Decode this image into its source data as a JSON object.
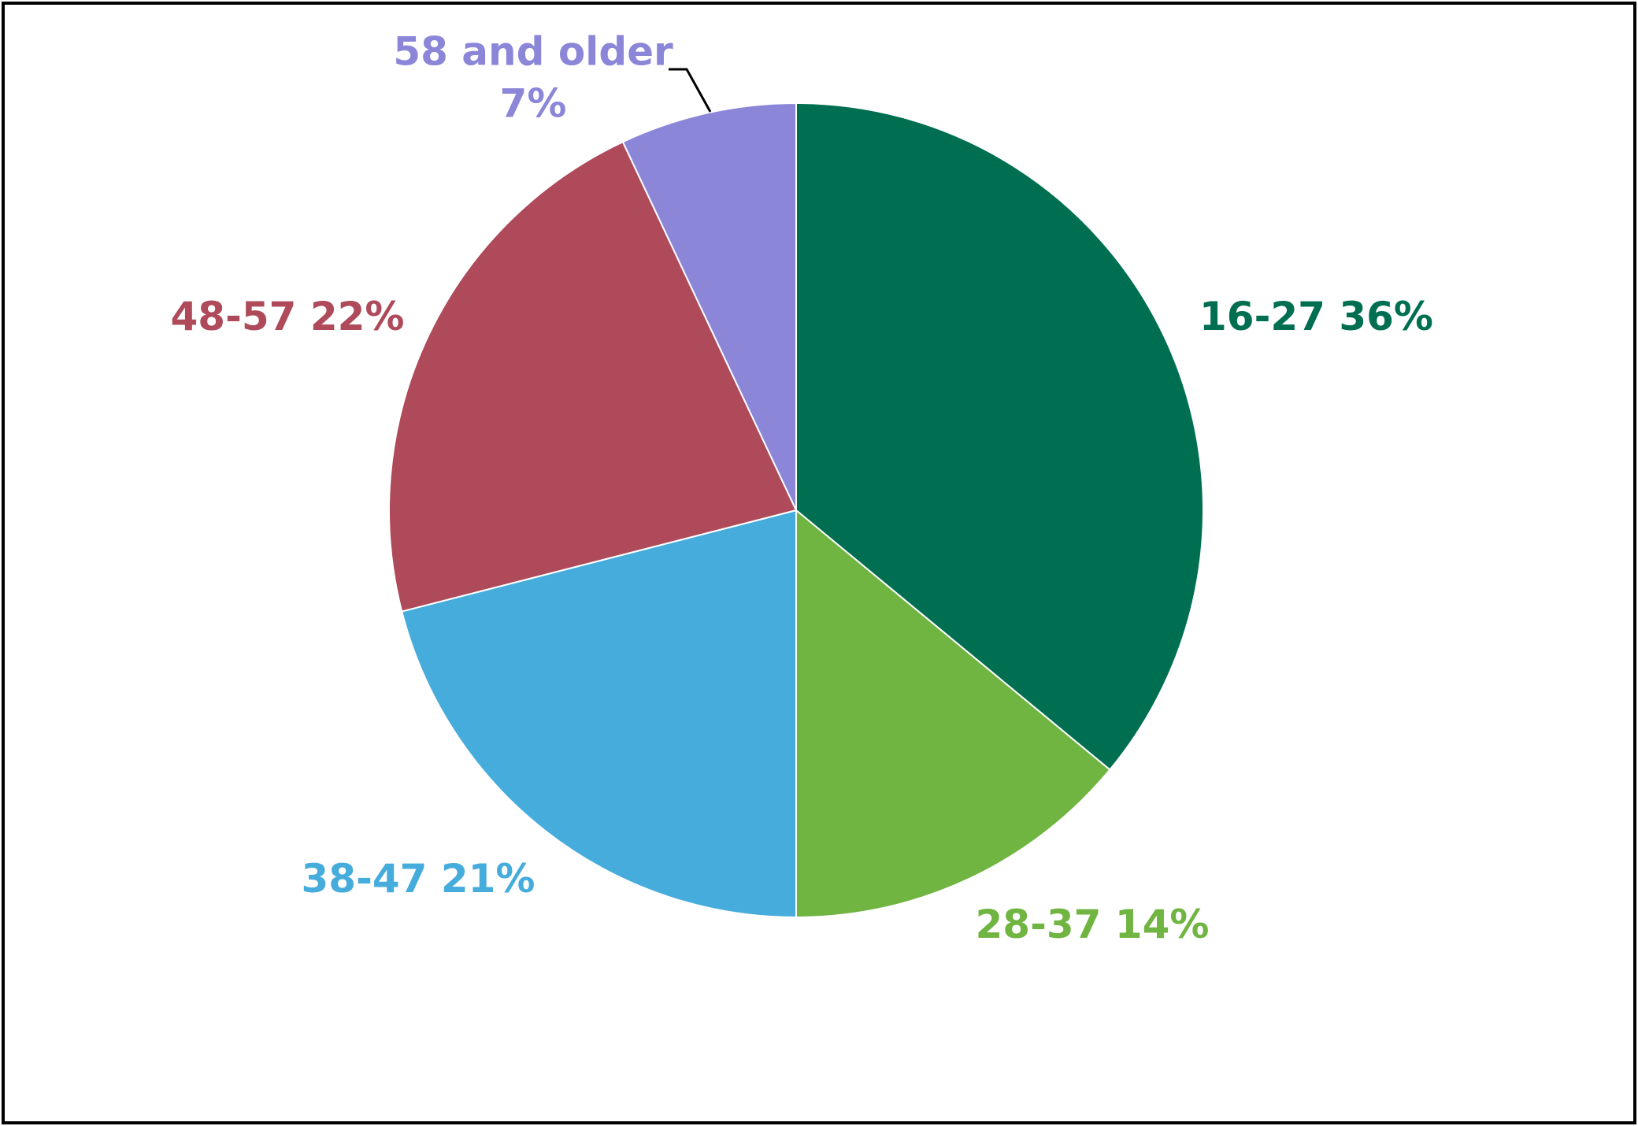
{
  "chart_data": {
    "type": "pie",
    "categories": [
      "16-27",
      "28-37",
      "38-47",
      "48-57",
      "58 and older"
    ],
    "values": [
      36,
      14,
      21,
      22,
      7
    ],
    "value_labels": [
      "36%",
      "14%",
      "21%",
      "22%",
      "7%"
    ],
    "colors": [
      "#006f51",
      "#70b441",
      "#46acdc",
      "#ae4a5a",
      "#8b86d8"
    ]
  }
}
